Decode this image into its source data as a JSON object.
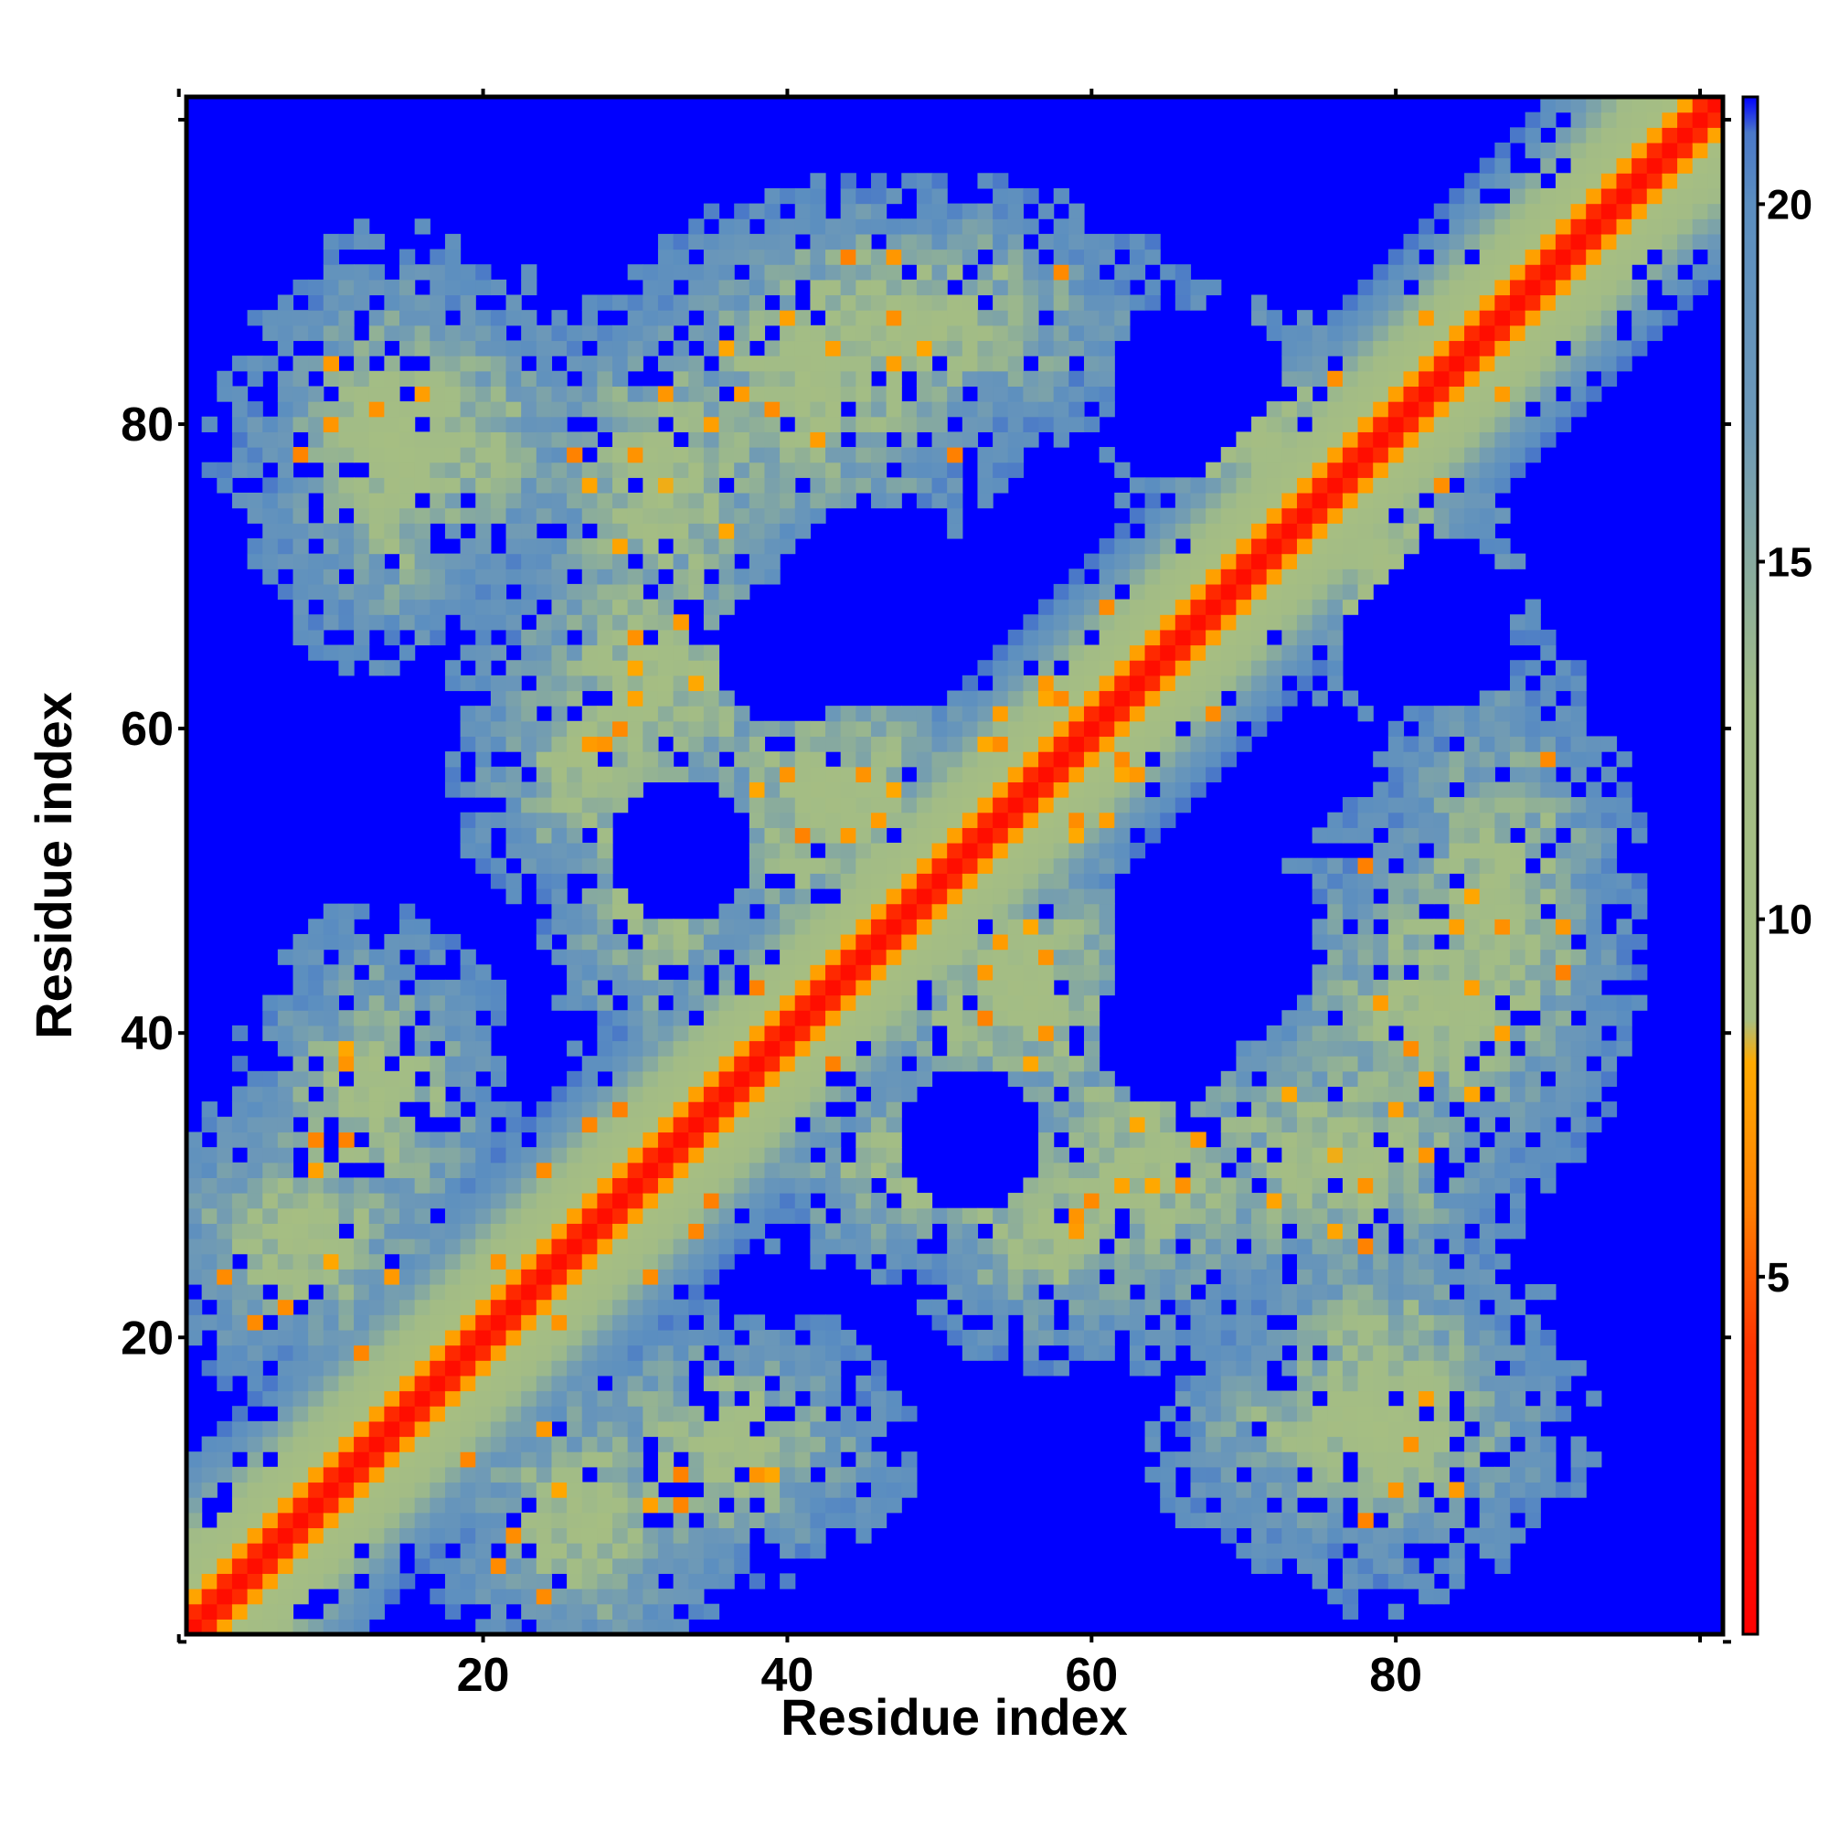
{
  "chart_data": {
    "type": "heatmap",
    "title": "",
    "xlabel": "Residue index",
    "ylabel": "Residue index",
    "x_range": [
      1,
      101
    ],
    "y_range": [
      1,
      101
    ],
    "xlim": [
      0.5,
      101.5
    ],
    "ylim": [
      0.5,
      101.5
    ],
    "x_ticks": [
      20,
      40,
      60,
      80
    ],
    "y_ticks": [
      20,
      40,
      60,
      80
    ],
    "x_tick_labels": [
      "20",
      "40",
      "60",
      "80"
    ],
    "y_tick_labels": [
      "20",
      "40",
      "60",
      "80"
    ],
    "grid": false,
    "symmetric": true,
    "value_description": "pairwise residue distance (colorbar units)",
    "colorbar": {
      "range": [
        0,
        21.5
      ],
      "ticks": [
        5,
        10,
        15,
        20
      ],
      "tick_labels": [
        "5",
        "10",
        "15",
        "20"
      ],
      "placement": "right",
      "stops": [
        {
          "value": 0,
          "color": "#ff0000"
        },
        {
          "value": 4,
          "color": "#ff3300"
        },
        {
          "value": 6,
          "color": "#ff8000"
        },
        {
          "value": 8,
          "color": "#ffaa00"
        },
        {
          "value": 8.6,
          "color": "#a6be82"
        },
        {
          "value": 13,
          "color": "#a2bc86"
        },
        {
          "value": 17,
          "color": "#6c98b8"
        },
        {
          "value": 20,
          "color": "#5b8ec0"
        },
        {
          "value": 21,
          "color": "#4a78c8"
        },
        {
          "value": 21.5,
          "color": "#0000ff"
        }
      ]
    },
    "background_value": 21.5,
    "diagonal_band": {
      "halfwidth": 9.5,
      "core_width": 1.6
    },
    "helices": [
      [
        3,
        28
      ],
      [
        27,
        62
      ],
      [
        60,
        100
      ]
    ],
    "blobs": [
      {
        "cx": 27,
        "cy": 8,
        "sx": 7,
        "sy": 7
      },
      {
        "cx": 58,
        "cy": 27,
        "sx": 7,
        "sy": 6
      },
      {
        "cx": 78,
        "cy": 14,
        "sx": 10,
        "sy": 6
      },
      {
        "cx": 82,
        "cy": 42,
        "sx": 8,
        "sy": 9
      },
      {
        "cx": 76,
        "cy": 32,
        "sx": 9,
        "sy": 7
      },
      {
        "cx": 50,
        "cy": 31,
        "sx": 9,
        "sy": 5
      },
      {
        "cx": 43,
        "cy": 55,
        "sx": 8,
        "sy": 9
      },
      {
        "cx": 32,
        "cy": 64,
        "sx": 9,
        "sy": 7
      },
      {
        "cx": 16,
        "cy": 79,
        "sx": 9,
        "sy": 8
      },
      {
        "cx": 48,
        "cy": 87,
        "sx": 12,
        "sy": 6
      },
      {
        "cx": 13,
        "cy": 36,
        "sx": 6,
        "sy": 8
      },
      {
        "cx": 70,
        "cy": 80,
        "sx": 6,
        "sy": 6
      }
    ],
    "holes": [
      {
        "cx": 46,
        "cy": 68,
        "r": 7
      },
      {
        "cx": 82,
        "cy": 67,
        "r": 6
      },
      {
        "cx": 65,
        "cy": 40,
        "r": 5
      },
      {
        "cx": 33,
        "cy": 52,
        "r": 5
      },
      {
        "cx": 27,
        "cy": 27,
        "r": 3
      }
    ]
  }
}
